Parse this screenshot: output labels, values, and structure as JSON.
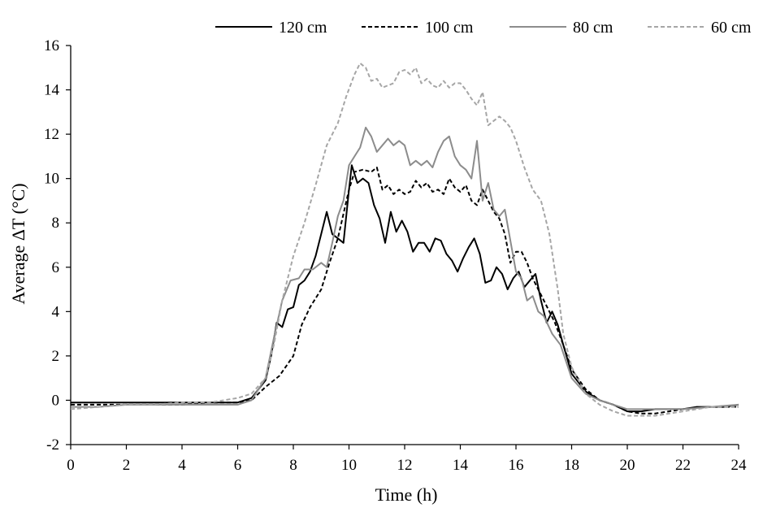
{
  "chart_data": {
    "type": "line",
    "title": "",
    "xlabel": "Time (h)",
    "ylabel": "Average ΔT (°C)",
    "xlim": [
      0,
      24
    ],
    "ylim": [
      -2,
      16
    ],
    "xticks": [
      0,
      2,
      4,
      6,
      8,
      10,
      12,
      14,
      16,
      18,
      20,
      22,
      24
    ],
    "yticks": [
      -2,
      0,
      2,
      4,
      6,
      8,
      10,
      12,
      14,
      16
    ],
    "grid": false,
    "legend_position": "top",
    "series": [
      {
        "name": "120 cm",
        "color": "#000000",
        "dash": "solid",
        "points": [
          [
            0,
            -0.1
          ],
          [
            1,
            -0.1
          ],
          [
            2,
            -0.1
          ],
          [
            3,
            -0.1
          ],
          [
            4,
            -0.1
          ],
          [
            5,
            -0.1
          ],
          [
            6,
            -0.1
          ],
          [
            6.5,
            0.1
          ],
          [
            7,
            0.9
          ],
          [
            7.2,
            2.0
          ],
          [
            7.4,
            3.5
          ],
          [
            7.6,
            3.3
          ],
          [
            7.8,
            4.1
          ],
          [
            8,
            4.2
          ],
          [
            8.2,
            5.2
          ],
          [
            8.4,
            5.4
          ],
          [
            8.6,
            5.8
          ],
          [
            8.8,
            6.5
          ],
          [
            9,
            7.5
          ],
          [
            9.2,
            8.5
          ],
          [
            9.4,
            7.5
          ],
          [
            9.6,
            7.3
          ],
          [
            9.8,
            7.1
          ],
          [
            10,
            9.5
          ],
          [
            10.1,
            10.6
          ],
          [
            10.3,
            9.8
          ],
          [
            10.5,
            10.0
          ],
          [
            10.7,
            9.8
          ],
          [
            10.9,
            8.8
          ],
          [
            11.1,
            8.2
          ],
          [
            11.3,
            7.1
          ],
          [
            11.5,
            8.5
          ],
          [
            11.7,
            7.6
          ],
          [
            11.9,
            8.1
          ],
          [
            12.1,
            7.6
          ],
          [
            12.3,
            6.7
          ],
          [
            12.5,
            7.1
          ],
          [
            12.7,
            7.1
          ],
          [
            12.9,
            6.7
          ],
          [
            13.1,
            7.3
          ],
          [
            13.3,
            7.2
          ],
          [
            13.5,
            6.6
          ],
          [
            13.7,
            6.3
          ],
          [
            13.9,
            5.8
          ],
          [
            14.1,
            6.4
          ],
          [
            14.3,
            6.9
          ],
          [
            14.5,
            7.3
          ],
          [
            14.7,
            6.6
          ],
          [
            14.9,
            5.3
          ],
          [
            15.1,
            5.4
          ],
          [
            15.3,
            6.0
          ],
          [
            15.5,
            5.7
          ],
          [
            15.7,
            5.0
          ],
          [
            15.9,
            5.5
          ],
          [
            16.1,
            5.8
          ],
          [
            16.3,
            5.1
          ],
          [
            16.5,
            5.4
          ],
          [
            16.7,
            5.7
          ],
          [
            16.9,
            4.5
          ],
          [
            17.1,
            3.5
          ],
          [
            17.3,
            4.0
          ],
          [
            17.5,
            3.4
          ],
          [
            17.7,
            2.5
          ],
          [
            18,
            1.2
          ],
          [
            18.5,
            0.4
          ],
          [
            19,
            0
          ],
          [
            19.5,
            -0.2
          ],
          [
            20,
            -0.5
          ],
          [
            20.5,
            -0.5
          ],
          [
            21,
            -0.4
          ],
          [
            21.5,
            -0.4
          ],
          [
            22,
            -0.4
          ],
          [
            22.5,
            -0.3
          ],
          [
            23,
            -0.3
          ],
          [
            23.5,
            -0.3
          ],
          [
            24,
            -0.2
          ]
        ]
      },
      {
        "name": "100 cm",
        "color": "#000000",
        "dash": "dashed",
        "points": [
          [
            0,
            -0.2
          ],
          [
            1,
            -0.2
          ],
          [
            2,
            -0.2
          ],
          [
            3,
            -0.2
          ],
          [
            4,
            -0.2
          ],
          [
            5,
            -0.1
          ],
          [
            6,
            -0.1
          ],
          [
            6.5,
            0
          ],
          [
            7,
            0.6
          ],
          [
            7.5,
            1.1
          ],
          [
            8,
            2.0
          ],
          [
            8.3,
            3.4
          ],
          [
            8.6,
            4.2
          ],
          [
            9,
            5.0
          ],
          [
            9.3,
            6.2
          ],
          [
            9.6,
            7.3
          ],
          [
            10,
            9.5
          ],
          [
            10.2,
            10.3
          ],
          [
            10.5,
            10.4
          ],
          [
            10.8,
            10.3
          ],
          [
            11,
            10.5
          ],
          [
            11.2,
            9.5
          ],
          [
            11.4,
            9.7
          ],
          [
            11.6,
            9.3
          ],
          [
            11.8,
            9.5
          ],
          [
            12,
            9.3
          ],
          [
            12.2,
            9.4
          ],
          [
            12.4,
            9.9
          ],
          [
            12.6,
            9.6
          ],
          [
            12.8,
            9.8
          ],
          [
            13,
            9.4
          ],
          [
            13.2,
            9.5
          ],
          [
            13.4,
            9.3
          ],
          [
            13.6,
            10.0
          ],
          [
            13.8,
            9.6
          ],
          [
            14,
            9.4
          ],
          [
            14.2,
            9.7
          ],
          [
            14.4,
            9.0
          ],
          [
            14.6,
            8.8
          ],
          [
            14.8,
            9.5
          ],
          [
            15,
            9.0
          ],
          [
            15.2,
            8.5
          ],
          [
            15.4,
            8.2
          ],
          [
            15.6,
            7.5
          ],
          [
            15.8,
            6.2
          ],
          [
            16,
            6.7
          ],
          [
            16.2,
            6.7
          ],
          [
            16.4,
            6.2
          ],
          [
            16.6,
            5.5
          ],
          [
            16.8,
            5.0
          ],
          [
            17,
            4.5
          ],
          [
            17.2,
            4.0
          ],
          [
            17.4,
            3.5
          ],
          [
            17.7,
            2.5
          ],
          [
            18,
            1.4
          ],
          [
            18.5,
            0.5
          ],
          [
            19,
            0
          ],
          [
            19.5,
            -0.2
          ],
          [
            20,
            -0.5
          ],
          [
            20.5,
            -0.6
          ],
          [
            21,
            -0.6
          ],
          [
            21.5,
            -0.5
          ],
          [
            22,
            -0.4
          ],
          [
            23,
            -0.3
          ],
          [
            24,
            -0.3
          ]
        ]
      },
      {
        "name": "80 cm",
        "color": "#8c8c8c",
        "dash": "solid",
        "points": [
          [
            0,
            -0.3
          ],
          [
            1,
            -0.3
          ],
          [
            2,
            -0.2
          ],
          [
            3,
            -0.2
          ],
          [
            4,
            -0.2
          ],
          [
            5,
            -0.2
          ],
          [
            6,
            -0.2
          ],
          [
            6.5,
            0
          ],
          [
            7,
            1.0
          ],
          [
            7.3,
            2.8
          ],
          [
            7.6,
            4.5
          ],
          [
            7.9,
            5.4
          ],
          [
            8.2,
            5.5
          ],
          [
            8.4,
            5.9
          ],
          [
            8.7,
            5.9
          ],
          [
            9,
            6.2
          ],
          [
            9.2,
            6.0
          ],
          [
            9.4,
            7.1
          ],
          [
            9.6,
            8.3
          ],
          [
            9.8,
            9.0
          ],
          [
            10,
            10.6
          ],
          [
            10.2,
            11.0
          ],
          [
            10.4,
            11.4
          ],
          [
            10.6,
            12.3
          ],
          [
            10.8,
            11.9
          ],
          [
            11,
            11.2
          ],
          [
            11.2,
            11.5
          ],
          [
            11.4,
            11.8
          ],
          [
            11.6,
            11.5
          ],
          [
            11.8,
            11.7
          ],
          [
            12,
            11.5
          ],
          [
            12.2,
            10.6
          ],
          [
            12.4,
            10.8
          ],
          [
            12.6,
            10.6
          ],
          [
            12.8,
            10.8
          ],
          [
            13,
            10.5
          ],
          [
            13.2,
            11.2
          ],
          [
            13.4,
            11.7
          ],
          [
            13.6,
            11.9
          ],
          [
            13.8,
            11.0
          ],
          [
            14,
            10.6
          ],
          [
            14.2,
            10.4
          ],
          [
            14.4,
            10.0
          ],
          [
            14.6,
            11.7
          ],
          [
            14.8,
            9.0
          ],
          [
            15,
            9.8
          ],
          [
            15.2,
            8.6
          ],
          [
            15.4,
            8.3
          ],
          [
            15.6,
            8.6
          ],
          [
            15.8,
            7.2
          ],
          [
            16,
            5.8
          ],
          [
            16.2,
            5.5
          ],
          [
            16.4,
            4.5
          ],
          [
            16.6,
            4.7
          ],
          [
            16.8,
            4.0
          ],
          [
            17,
            3.8
          ],
          [
            17.3,
            3.0
          ],
          [
            17.6,
            2.5
          ],
          [
            18,
            1.0
          ],
          [
            18.5,
            0.3
          ],
          [
            19,
            0
          ],
          [
            19.5,
            -0.2
          ],
          [
            20,
            -0.4
          ],
          [
            20.5,
            -0.4
          ],
          [
            21,
            -0.4
          ],
          [
            21.5,
            -0.4
          ],
          [
            22,
            -0.4
          ],
          [
            23,
            -0.3
          ],
          [
            24,
            -0.2
          ]
        ]
      },
      {
        "name": "60 cm",
        "color": "#a6a6a6",
        "dash": "dashed",
        "points": [
          [
            0,
            -0.4
          ],
          [
            1,
            -0.3
          ],
          [
            2,
            -0.2
          ],
          [
            3,
            -0.2
          ],
          [
            4,
            -0.1
          ],
          [
            5,
            -0.1
          ],
          [
            6,
            0.1
          ],
          [
            6.5,
            0.3
          ],
          [
            7,
            1.0
          ],
          [
            7.3,
            2.5
          ],
          [
            7.6,
            4.5
          ],
          [
            8,
            6.5
          ],
          [
            8.4,
            8.0
          ],
          [
            8.8,
            9.7
          ],
          [
            9.2,
            11.5
          ],
          [
            9.6,
            12.5
          ],
          [
            9.9,
            13.7
          ],
          [
            10.2,
            14.7
          ],
          [
            10.4,
            15.2
          ],
          [
            10.6,
            15.0
          ],
          [
            10.8,
            14.4
          ],
          [
            11,
            14.5
          ],
          [
            11.2,
            14.1
          ],
          [
            11.4,
            14.2
          ],
          [
            11.6,
            14.3
          ],
          [
            11.8,
            14.8
          ],
          [
            12,
            14.9
          ],
          [
            12.2,
            14.7
          ],
          [
            12.4,
            15.0
          ],
          [
            12.6,
            14.3
          ],
          [
            12.8,
            14.5
          ],
          [
            13,
            14.2
          ],
          [
            13.2,
            14.1
          ],
          [
            13.4,
            14.4
          ],
          [
            13.6,
            14.1
          ],
          [
            13.8,
            14.3
          ],
          [
            14,
            14.3
          ],
          [
            14.2,
            14.0
          ],
          [
            14.4,
            13.6
          ],
          [
            14.6,
            13.3
          ],
          [
            14.8,
            13.9
          ],
          [
            15,
            12.4
          ],
          [
            15.2,
            12.6
          ],
          [
            15.4,
            12.8
          ],
          [
            15.6,
            12.6
          ],
          [
            15.8,
            12.3
          ],
          [
            16,
            11.7
          ],
          [
            16.3,
            10.5
          ],
          [
            16.6,
            9.5
          ],
          [
            16.9,
            9.0
          ],
          [
            17.2,
            7.5
          ],
          [
            17.5,
            5.0
          ],
          [
            17.7,
            3.0
          ],
          [
            18,
            1.5
          ],
          [
            18.5,
            0.3
          ],
          [
            19,
            -0.2
          ],
          [
            19.5,
            -0.5
          ],
          [
            20,
            -0.7
          ],
          [
            20.5,
            -0.7
          ],
          [
            21,
            -0.7
          ],
          [
            21.5,
            -0.6
          ],
          [
            22,
            -0.5
          ],
          [
            22.5,
            -0.4
          ],
          [
            23,
            -0.3
          ],
          [
            24,
            -0.3
          ]
        ]
      }
    ]
  }
}
